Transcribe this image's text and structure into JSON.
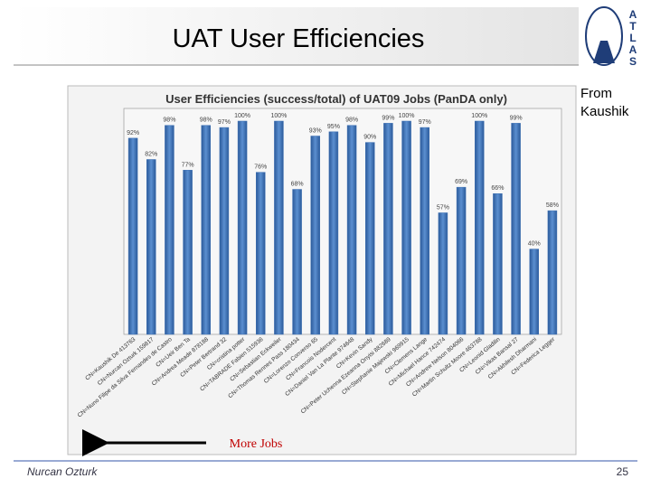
{
  "slide": {
    "title": "UAT User Efficiencies",
    "logo": [
      "A",
      "T",
      "L",
      "A",
      "S"
    ],
    "note": [
      "From",
      "Kaushik"
    ],
    "annotation": "More Jobs",
    "footer": "Nurcan Ozturk",
    "page": "25"
  },
  "chart_data": {
    "type": "bar",
    "title": "User Efficiencies (success/total) of UAT09 Jobs (PanDA only)",
    "categories": [
      "CN=Kaushik De 413763",
      "CN=Nurcan Ozturk 159817",
      "CN=Nuno Filipe da Silva Fernandes de Castro",
      "CN=Ueir Ben Ta",
      "CN=Andrea Meade 878188",
      "CN=Peter Bertrand 32",
      "CN=cristina potter",
      "CN=TABRADE Fabien 515936",
      "CN=Sebastian Eckweiler",
      "CN=Thomas Rennes Pass 180434",
      "CN=Lorenzo Converso 65",
      "CN=Francois Nodercent",
      "CN=Daniel Van La Plante 974648",
      "CN=Kevin Sandy",
      "CN=Peter Uchenna Ezeanna Onyisi 882689",
      "CN=Stephanie Majewski 969915",
      "CN=Clemens Lange",
      "CN=Michael Hance 742474",
      "CN=Andrew Nelson 804066",
      "CN=Martin Schultz Moore 463788",
      "CN=Leonid Gladilin",
      "CN=Vikas Bansal 27",
      "CN=Akhilesh Dharmani",
      "CN=Federica Legger"
    ],
    "values": [
      92,
      82,
      98,
      77,
      98,
      97,
      100,
      76,
      100,
      68,
      93,
      95,
      98,
      90,
      99,
      100,
      97,
      57,
      69,
      100,
      66,
      99,
      40,
      58
    ],
    "value_labels": [
      "92%",
      "82%",
      "98%",
      "77%",
      "98%",
      "97%",
      "100%",
      "76%",
      "100%",
      "68%",
      "93%",
      "95%",
      "98%",
      "90%",
      "99%",
      "100%",
      "97%",
      "57%",
      "69%",
      "100%",
      "66%",
      "99%",
      "40%",
      "58%"
    ],
    "color": "#3f72b5",
    "ylim": [
      0,
      100
    ]
  }
}
